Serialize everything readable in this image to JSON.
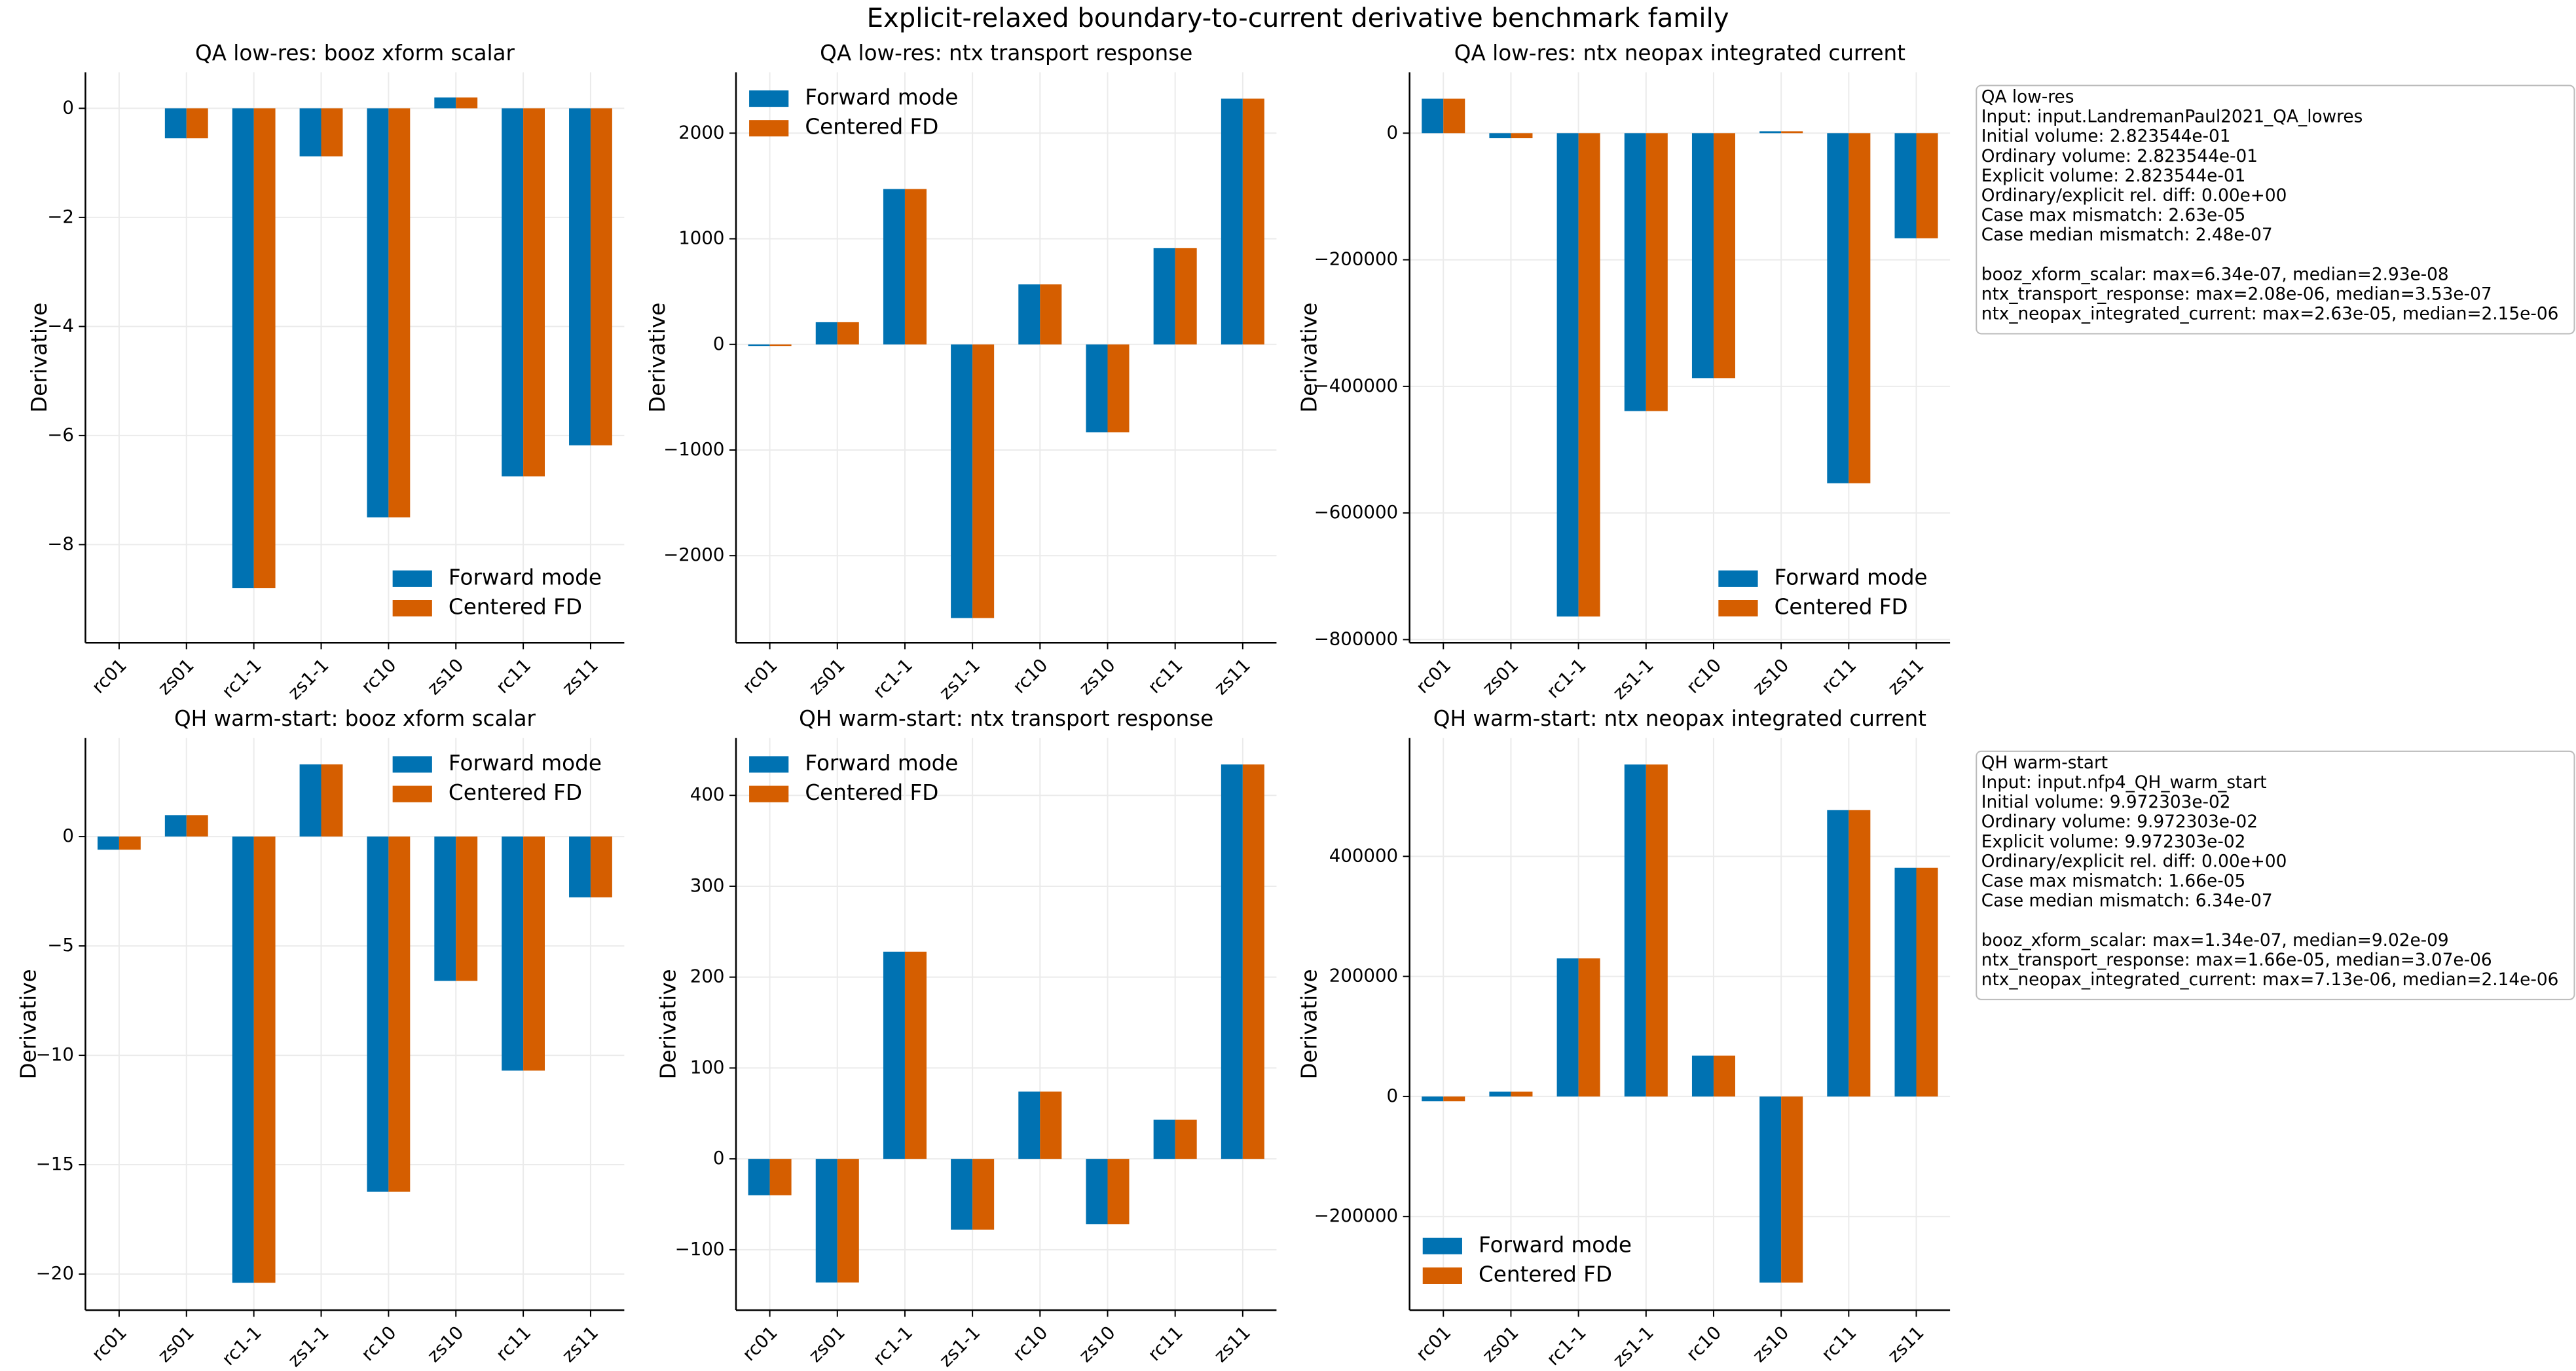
{
  "title": "Explicit-relaxed boundary-to-current derivative benchmark family",
  "chart_data": [
    {
      "type": "bar",
      "title": "QA low-res: booz xform scalar",
      "ylabel": "Derivative",
      "categories": [
        "rc01",
        "zs01",
        "rc1-1",
        "zs1-1",
        "rc10",
        "zs10",
        "rc11",
        "zs11"
      ],
      "series": [
        {
          "name": "Forward mode",
          "color": "#0072b2",
          "values": [
            0,
            -0.55,
            -8.8,
            -0.88,
            -7.5,
            0.2,
            -6.75,
            -6.18
          ]
        },
        {
          "name": "Centered FD",
          "color": "#d55e00",
          "values": [
            0,
            -0.55,
            -8.8,
            -0.88,
            -7.5,
            0.2,
            -6.75,
            -6.18
          ]
        }
      ],
      "ylim": [
        -9.8,
        0.66
      ],
      "yticks": [
        {
          "value": -8,
          "label": "−8"
        },
        {
          "value": -6,
          "label": "−6"
        },
        {
          "value": -4,
          "label": "−4"
        },
        {
          "value": -2,
          "label": "−2"
        },
        0
      ],
      "grid": true,
      "legend": "lower right"
    },
    {
      "type": "bar",
      "title": "QA low-res: ntx transport response",
      "ylabel": "Derivative",
      "categories": [
        "rc01",
        "zs01",
        "rc1-1",
        "zs1-1",
        "rc10",
        "zs10",
        "rc11",
        "zs11"
      ],
      "series": [
        {
          "name": "Forward mode",
          "color": "#0072b2",
          "values": [
            -15,
            210,
            1471,
            -2591,
            568,
            -833,
            911,
            2327
          ]
        },
        {
          "name": "Centered FD",
          "color": "#d55e00",
          "values": [
            -15,
            210,
            1471,
            -2591,
            568,
            -833,
            911,
            2327
          ]
        }
      ],
      "ylim": [
        -2825,
        2576
      ],
      "yticks": [
        {
          "value": -2000,
          "label": "−2000"
        },
        {
          "value": -1000,
          "label": "−1000"
        },
        0,
        1000,
        2000
      ],
      "grid": true,
      "legend": "upper left"
    },
    {
      "type": "bar",
      "title": "QA low-res: ntx neopax integrated current",
      "ylabel": "Derivative",
      "categories": [
        "rc01",
        "zs01",
        "rc1-1",
        "zs1-1",
        "rc10",
        "zs10",
        "rc11",
        "zs11"
      ],
      "series": [
        {
          "name": "Forward mode",
          "color": "#0072b2",
          "values": [
            54500,
            -8000,
            -763600,
            -439000,
            -387000,
            3000,
            -553000,
            -166000
          ]
        },
        {
          "name": "Centered FD",
          "color": "#d55e00",
          "values": [
            54500,
            -8000,
            -763600,
            -439000,
            -387000,
            3000,
            -553000,
            -166000
          ]
        }
      ],
      "ylim": [
        -805000,
        96100
      ],
      "yticks": [
        {
          "value": -800000,
          "label": "−800000"
        },
        {
          "value": -600000,
          "label": "−600000"
        },
        {
          "value": -400000,
          "label": "−400000"
        },
        {
          "value": -200000,
          "label": "−200000"
        },
        0
      ],
      "grid": true,
      "legend": "lower right",
      "annotation": {
        "header": [
          "QA low-res",
          "Input: input.LandremanPaul2021_QA_lowres",
          "Initial volume: 2.823544e-01",
          "Ordinary volume: 2.823544e-01",
          "Explicit volume: 2.823544e-01",
          "Ordinary/explicit rel. diff: 0.00e+00",
          "Case max mismatch: 2.63e-05",
          "Case median mismatch: 2.48e-07"
        ],
        "metrics": [
          "booz_xform_scalar: max=6.34e-07, median=2.93e-08",
          "ntx_transport_response: max=2.08e-06, median=3.53e-07",
          "ntx_neopax_integrated_current: max=2.63e-05, median=2.15e-06"
        ]
      }
    },
    {
      "type": "bar",
      "title": "QH warm-start: booz xform scalar",
      "ylabel": "Derivative",
      "categories": [
        "rc01",
        "zs01",
        "rc1-1",
        "zs1-1",
        "rc10",
        "zs10",
        "rc11",
        "zs11"
      ],
      "series": [
        {
          "name": "Forward mode",
          "color": "#0072b2",
          "values": [
            -0.6,
            0.98,
            -20.4,
            3.3,
            -16.24,
            -6.6,
            -10.7,
            -2.78
          ]
        },
        {
          "name": "Centered FD",
          "color": "#d55e00",
          "values": [
            -0.6,
            0.98,
            -20.4,
            3.3,
            -16.24,
            -6.6,
            -10.7,
            -2.78
          ]
        }
      ],
      "ylim": [
        -21.65,
        4.5
      ],
      "yticks": [
        {
          "value": -20,
          "label": "−20"
        },
        {
          "value": -15,
          "label": "−15"
        },
        {
          "value": -10,
          "label": "−10"
        },
        {
          "value": -5,
          "label": "−5"
        },
        0
      ],
      "grid": true,
      "legend": "upper right"
    },
    {
      "type": "bar",
      "title": "QH warm-start: ntx transport response",
      "ylabel": "Derivative",
      "categories": [
        "rc01",
        "zs01",
        "rc1-1",
        "zs1-1",
        "rc10",
        "zs10",
        "rc11",
        "zs11"
      ],
      "series": [
        {
          "name": "Forward mode",
          "color": "#0072b2",
          "values": [
            -40,
            -136,
            228,
            -78,
            74,
            -72,
            43,
            434
          ]
        },
        {
          "name": "Centered FD",
          "color": "#d55e00",
          "values": [
            -40,
            -136,
            228,
            -78,
            74,
            -72,
            43,
            434
          ]
        }
      ],
      "ylim": [
        -166.5,
        463
      ],
      "yticks": [
        {
          "value": -100,
          "label": "−100"
        },
        0,
        100,
        200,
        300,
        400
      ],
      "grid": true,
      "legend": "upper left"
    },
    {
      "type": "bar",
      "title": "QH warm-start: ntx neopax integrated current",
      "ylabel": "Derivative",
      "categories": [
        "rc01",
        "zs01",
        "rc1-1",
        "zs1-1",
        "rc10",
        "zs10",
        "rc11",
        "zs11"
      ],
      "series": [
        {
          "name": "Forward mode",
          "color": "#0072b2",
          "values": [
            -8000,
            8000,
            230000,
            553000,
            68000,
            -310000,
            477000,
            381000
          ]
        },
        {
          "name": "Centered FD",
          "color": "#d55e00",
          "values": [
            -8000,
            8000,
            230000,
            553000,
            68000,
            -310000,
            477000,
            381000
          ]
        }
      ],
      "ylim": [
        -356000,
        597000
      ],
      "yticks": [
        {
          "value": -200000,
          "label": "−200000"
        },
        0,
        200000,
        400000
      ],
      "grid": true,
      "legend": "lower left",
      "annotation": {
        "header": [
          "QH warm-start",
          "Input: input.nfp4_QH_warm_start",
          "Initial volume: 9.972303e-02",
          "Ordinary volume: 9.972303e-02",
          "Explicit volume: 9.972303e-02",
          "Ordinary/explicit rel. diff: 0.00e+00",
          "Case max mismatch: 1.66e-05",
          "Case median mismatch: 6.34e-07"
        ],
        "metrics": [
          "booz_xform_scalar: max=1.34e-07, median=9.02e-09",
          "ntx_transport_response: max=1.66e-05, median=3.07e-06",
          "ntx_neopax_integrated_current: max=7.13e-06, median=2.14e-06"
        ]
      }
    }
  ]
}
